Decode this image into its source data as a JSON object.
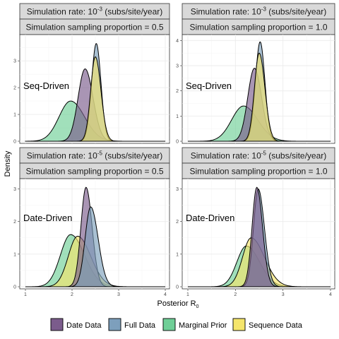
{
  "chart_data": {
    "type": "area",
    "xlabel": "Posterior R",
    "xlabel_subscript": "0",
    "ylabel": "Density",
    "xlim": [
      1,
      4
    ],
    "x_ticks": [
      "1",
      "2",
      "3",
      "4"
    ],
    "legend_position": "bottom",
    "grid": true,
    "series_legend": [
      {
        "name": "Date Data",
        "color": "#7b5c8c"
      },
      {
        "name": "Full Data",
        "color": "#7d9fbc"
      },
      {
        "name": "Marginal Prior",
        "color": "#6fcf97"
      },
      {
        "name": "Sequence Data",
        "color": "#f5e56b"
      }
    ],
    "panels": [
      {
        "strip_rate": {
          "prefix": "Simulation rate: 10",
          "exp": "-3",
          "suffix": " (subs/site/year)"
        },
        "strip_prop": "Simulation sampling proportion = 0.5",
        "label": "Seq-Driven",
        "ylim": [
          0,
          3.9
        ],
        "y_ticks": [
          0,
          1,
          2,
          3
        ],
        "series": [
          {
            "name": "Marginal Prior",
            "mode": 1.97,
            "peak": 1.5,
            "sd_left": 0.25,
            "sd_right": 0.3
          },
          {
            "name": "Date Data",
            "mode": 2.28,
            "peak": 2.7,
            "sd_left": 0.15,
            "sd_right": 0.17
          },
          {
            "name": "Full Data",
            "mode": 2.52,
            "peak": 3.65,
            "sd_left": 0.1,
            "sd_right": 0.1
          },
          {
            "name": "Sequence Data",
            "mode": 2.5,
            "peak": 3.15,
            "sd_left": 0.1,
            "sd_right": 0.12
          }
        ]
      },
      {
        "strip_rate": {
          "prefix": "Simulation rate: 10",
          "exp": "-3",
          "suffix": " (subs/site/year)"
        },
        "strip_prop": "Simulation sampling proportion = 1.0",
        "label": "Seq-Driven",
        "ylim": [
          0,
          4.15
        ],
        "y_ticks": [
          0,
          1,
          2,
          3,
          4
        ],
        "series": [
          {
            "name": "Marginal Prior",
            "mode": 2.17,
            "peak": 1.4,
            "sd_left": 0.25,
            "sd_right": 0.3
          },
          {
            "name": "Date Data",
            "mode": 2.4,
            "peak": 2.9,
            "sd_left": 0.14,
            "sd_right": 0.15
          },
          {
            "name": "Full Data",
            "mode": 2.52,
            "peak": 3.95,
            "sd_left": 0.1,
            "sd_right": 0.1
          },
          {
            "name": "Sequence Data",
            "mode": 2.5,
            "peak": 3.5,
            "sd_left": 0.1,
            "sd_right": 0.12
          }
        ]
      },
      {
        "strip_rate": {
          "prefix": "Simulation rate: 10",
          "exp": "-5",
          "suffix": " (subs/site/year)"
        },
        "strip_prop": "Simulation sampling proportion = 0.5",
        "label": "Date-Driven",
        "ylim": [
          0,
          3.25
        ],
        "y_ticks": [
          0,
          1,
          2,
          3
        ],
        "series": [
          {
            "name": "Marginal Prior",
            "mode": 1.97,
            "peak": 1.6,
            "sd_left": 0.22,
            "sd_right": 0.3
          },
          {
            "name": "Sequence Data",
            "mode": 2.12,
            "peak": 1.55,
            "sd_left": 0.2,
            "sd_right": 0.28
          },
          {
            "name": "Date Data",
            "mode": 2.3,
            "peak": 3.05,
            "sd_left": 0.11,
            "sd_right": 0.13
          },
          {
            "name": "Full Data",
            "mode": 2.4,
            "peak": 2.45,
            "sd_left": 0.12,
            "sd_right": 0.16
          }
        ]
      },
      {
        "strip_rate": {
          "prefix": "Simulation rate: 10",
          "exp": "-5",
          "suffix": " (subs/site/year)"
        },
        "strip_prop": "Simulation sampling proportion = 1.0",
        "label": "Date-Driven",
        "ylim": [
          0,
          3.25
        ],
        "y_ticks": [
          0,
          1,
          2,
          3
        ],
        "series": [
          {
            "name": "Marginal Prior",
            "mode": 2.23,
            "peak": 1.25,
            "sd_left": 0.2,
            "sd_right": 0.28
          },
          {
            "name": "Sequence Data",
            "mode": 2.33,
            "peak": 1.5,
            "sd_left": 0.18,
            "sd_right": 0.28
          },
          {
            "name": "Full Data",
            "mode": 2.48,
            "peak": 3.0,
            "sd_left": 0.1,
            "sd_right": 0.13
          },
          {
            "name": "Date Data",
            "mode": 2.45,
            "peak": 3.05,
            "sd_left": 0.1,
            "sd_right": 0.12
          }
        ]
      }
    ]
  }
}
